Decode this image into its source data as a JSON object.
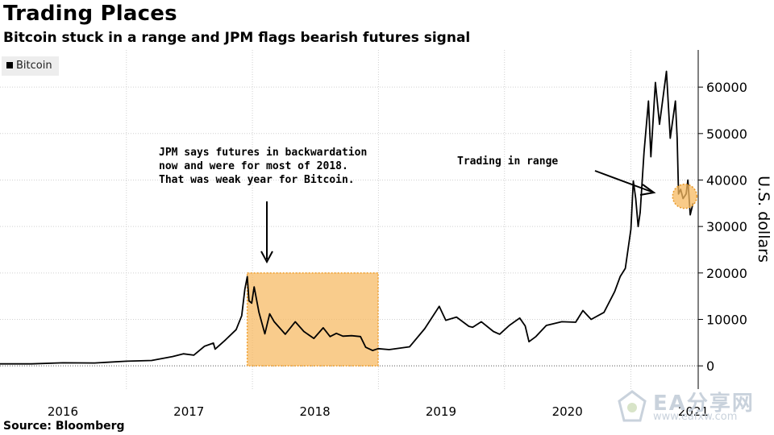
{
  "title": "Trading Places",
  "subtitle": "Bitcoin stuck in a range and JPM flags bearish futures signal",
  "source": "Source: Bloomberg",
  "watermark": {
    "name": "EA分享网",
    "url": "www.eafxw.com"
  },
  "colors": {
    "line": "#000000",
    "highlight": "#f7b960",
    "gridline": "#cccccc"
  },
  "chart_data": {
    "type": "line",
    "ylabel": "U.S. dollars",
    "y_axis_side": "right",
    "ylim": [
      -5000,
      68000
    ],
    "yticks": [
      0,
      10000,
      20000,
      30000,
      40000,
      50000,
      60000
    ],
    "ytick_labels": [
      "0",
      "10000",
      "20000",
      "30000",
      "40000",
      "50000",
      "60000"
    ],
    "xlim": [
      "2016-01-01",
      "2021-07-15"
    ],
    "xtick_labels": [
      "2016",
      "2017",
      "2018",
      "2019",
      "2020",
      "2021"
    ],
    "xtick_dates": [
      "2016-07-01",
      "2017-07-01",
      "2018-07-01",
      "2019-07-01",
      "2020-07-01",
      "2021-07-01"
    ],
    "legend": {
      "position": "top-left",
      "entries": [
        "Bitcoin"
      ]
    },
    "grid": true,
    "series": [
      {
        "name": "Bitcoin",
        "x": [
          "2016-01-01",
          "2016-04-01",
          "2016-07-01",
          "2016-10-01",
          "2017-01-01",
          "2017-03-15",
          "2017-05-15",
          "2017-06-15",
          "2017-07-15",
          "2017-08-15",
          "2017-09-10",
          "2017-09-15",
          "2017-10-15",
          "2017-11-15",
          "2017-12-01",
          "2017-12-10",
          "2017-12-17",
          "2017-12-22",
          "2017-12-30",
          "2018-01-06",
          "2018-01-20",
          "2018-02-06",
          "2018-02-20",
          "2018-03-05",
          "2018-04-06",
          "2018-05-05",
          "2018-05-30",
          "2018-06-28",
          "2018-07-25",
          "2018-08-14",
          "2018-09-01",
          "2018-09-20",
          "2018-10-15",
          "2018-11-10",
          "2018-11-25",
          "2018-12-15",
          "2018-12-31",
          "2019-02-01",
          "2019-04-01",
          "2019-05-15",
          "2019-06-26",
          "2019-07-15",
          "2019-08-15",
          "2019-09-20",
          "2019-10-01",
          "2019-10-26",
          "2019-11-30",
          "2019-12-18",
          "2020-01-15",
          "2020-02-14",
          "2020-03-01",
          "2020-03-12",
          "2020-04-01",
          "2020-05-01",
          "2020-06-15",
          "2020-07-25",
          "2020-08-15",
          "2020-09-08",
          "2020-10-15",
          "2020-11-15",
          "2020-12-01",
          "2020-12-16",
          "2021-01-01",
          "2021-01-08",
          "2021-01-15",
          "2021-01-22",
          "2021-01-28",
          "2021-02-08",
          "2021-02-21",
          "2021-02-28",
          "2021-03-13",
          "2021-03-25",
          "2021-04-14",
          "2021-04-25",
          "2021-05-10",
          "2021-05-15",
          "2021-05-19",
          "2021-05-25",
          "2021-06-01",
          "2021-06-10",
          "2021-06-15",
          "2021-06-22",
          "2021-06-30"
        ],
        "values": [
          430,
          420,
          650,
          610,
          1000,
          1150,
          2000,
          2600,
          2300,
          4200,
          4900,
          3600,
          5600,
          7800,
          10800,
          16500,
          19200,
          14000,
          13500,
          17000,
          11500,
          6900,
          11200,
          9500,
          6800,
          9500,
          7400,
          5900,
          8200,
          6300,
          7000,
          6400,
          6500,
          6300,
          4000,
          3300,
          3700,
          3500,
          4100,
          8000,
          12800,
          9800,
          10500,
          8500,
          8300,
          9500,
          7400,
          6800,
          8700,
          10300,
          8600,
          5200,
          6300,
          8700,
          9500,
          9400,
          11900,
          10000,
          11500,
          16000,
          19200,
          21000,
          29400,
          39800,
          36000,
          30000,
          33000,
          46000,
          57000,
          45000,
          61000,
          52000,
          63400,
          49000,
          57000,
          49000,
          37000,
          38000,
          36000,
          37000,
          40000,
          32500,
          35000
        ]
      }
    ],
    "annotations": [
      {
        "text": [
          "JPM says futures in backwardation",
          "now and were for most of 2018.",
          "That was weak year for Bitcoin."
        ],
        "highlight_x_range": [
          "2017-12-17",
          "2018-12-31"
        ],
        "highlight_y_range": [
          0,
          20000
        ]
      },
      {
        "text": [
          "Trading in range"
        ],
        "highlight_center": [
          "2021-06-06",
          36500
        ]
      }
    ]
  }
}
